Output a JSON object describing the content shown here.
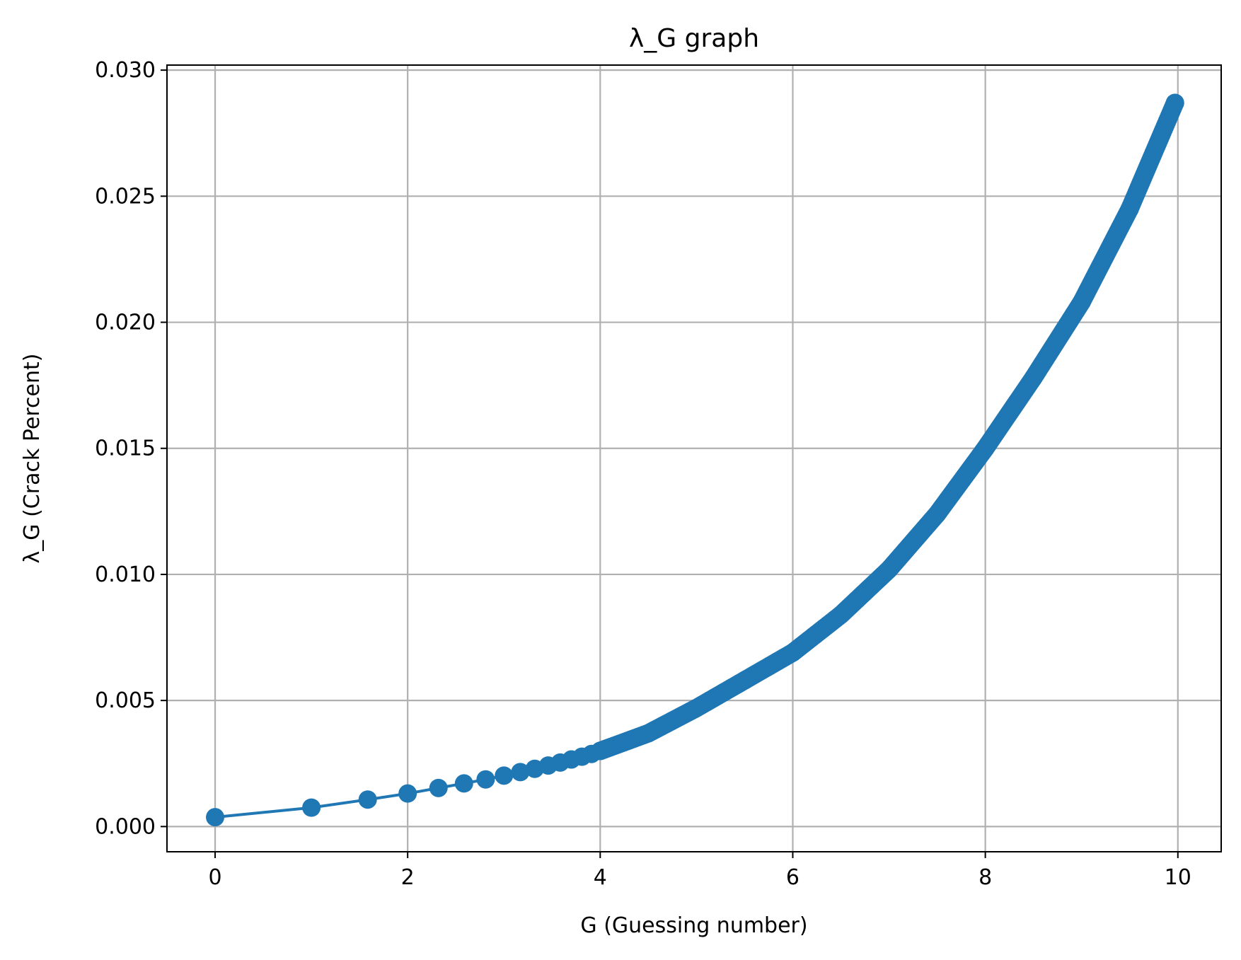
{
  "chart_data": {
    "type": "line",
    "title": "λ_G graph",
    "xlabel": "G (Guessing number)",
    "ylabel": "λ_G (Crack Percent)",
    "xlim": [
      -0.5,
      10.45
    ],
    "ylim": [
      -0.001,
      0.0302
    ],
    "xticks": [
      0,
      2,
      4,
      6,
      8,
      10
    ],
    "xtick_labels": [
      "0",
      "2",
      "4",
      "6",
      "8",
      "10"
    ],
    "yticks": [
      0.0,
      0.005,
      0.01,
      0.015,
      0.02,
      0.025,
      0.03
    ],
    "ytick_labels": [
      "0.000",
      "0.005",
      "0.010",
      "0.015",
      "0.020",
      "0.025",
      "0.030"
    ],
    "grid": true,
    "marker": "circle",
    "color": "#1f77b4",
    "series": [
      {
        "points_x": [
          0,
          1,
          1.585,
          2,
          2.32,
          2.585,
          2.81,
          3,
          3.17,
          3.32,
          3.46,
          3.585,
          3.7,
          3.81,
          3.91,
          4.0,
          4.5,
          5.0,
          5.5,
          6.0,
          6.5,
          7.0,
          7.5,
          8.0,
          8.5,
          9.0,
          9.5,
          9.97
        ],
        "points_y": [
          0.00037,
          0.00075,
          0.00107,
          0.00131,
          0.00153,
          0.00171,
          0.00187,
          0.00202,
          0.00216,
          0.00229,
          0.00242,
          0.00254,
          0.00266,
          0.00277,
          0.00288,
          0.003,
          0.0037,
          0.0047,
          0.0058,
          0.0069,
          0.0084,
          0.0102,
          0.0124,
          0.015,
          0.0178,
          0.0208,
          0.0245,
          0.0287
        ]
      }
    ]
  }
}
